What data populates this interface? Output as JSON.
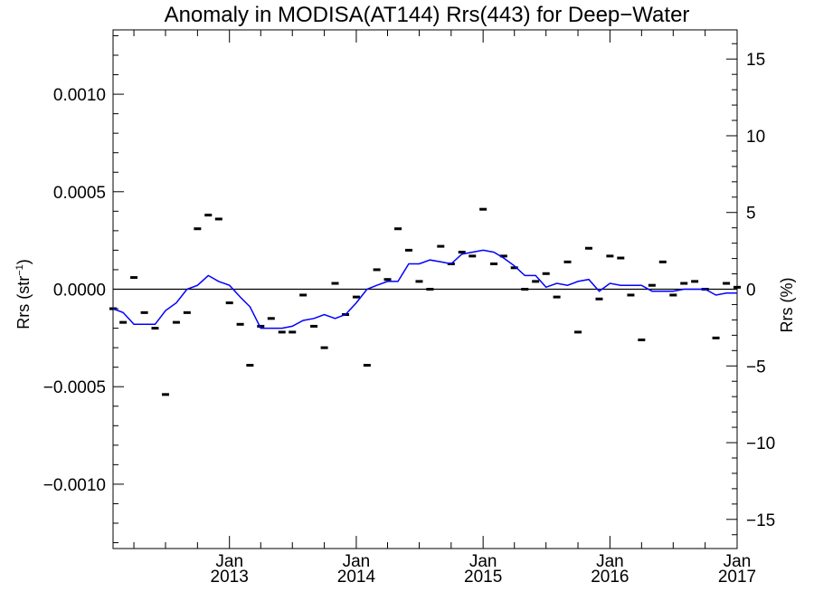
{
  "chart_data": {
    "type": "line",
    "title": "Anomaly in MODISA(AT144) Rrs(443) for Deep−Water",
    "ylabel_left": {
      "main": "Rrs (str",
      "sup": "−1",
      "close": ")"
    },
    "ylabel_right": "Rrs (%)",
    "x_range": [
      "2012-02-01",
      "2017-01-01"
    ],
    "ylim_left": [
      -0.00133,
      0.00133
    ],
    "ylim_right": [
      -16.9,
      16.9
    ],
    "x_ticks": [
      {
        "date": "2013-01-01",
        "label_top": "Jan",
        "label_bottom": "2013"
      },
      {
        "date": "2014-01-01",
        "label_top": "Jan",
        "label_bottom": "2014"
      },
      {
        "date": "2015-01-01",
        "label_top": "Jan",
        "label_bottom": "2015"
      },
      {
        "date": "2016-01-01",
        "label_top": "Jan",
        "label_bottom": "2016"
      },
      {
        "date": "2017-01-01",
        "label_top": "Jan",
        "label_bottom": "2017"
      }
    ],
    "y_ticks_left": [
      {
        "value": 0.001,
        "label": "0.0010"
      },
      {
        "value": 0.0005,
        "label": "0.0005"
      },
      {
        "value": 0.0,
        "label": "0.0000"
      },
      {
        "value": -0.0005,
        "label": "−0.0005"
      },
      {
        "value": -0.001,
        "label": "−0.0010"
      }
    ],
    "y_ticks_right": [
      {
        "value": 15,
        "label": "15"
      },
      {
        "value": 10,
        "label": "10"
      },
      {
        "value": 5,
        "label": "5"
      },
      {
        "value": 0,
        "label": "0"
      },
      {
        "value": -5,
        "label": "−5"
      },
      {
        "value": -10,
        "label": "−10"
      },
      {
        "value": -15,
        "label": "−15"
      }
    ],
    "colors": {
      "series": "#0000ff",
      "points": "#000000",
      "zero_line": "#000000"
    },
    "series": [
      {
        "style": "markers",
        "x": [
          "2012-02-01",
          "2012-03-01",
          "2012-04-01",
          "2012-05-01",
          "2012-06-01",
          "2012-07-01",
          "2012-08-01",
          "2012-09-01",
          "2012-10-01",
          "2012-11-01",
          "2012-12-01",
          "2013-01-01",
          "2013-02-01",
          "2013-03-01",
          "2013-04-01",
          "2013-05-01",
          "2013-06-01",
          "2013-07-01",
          "2013-08-01",
          "2013-09-01",
          "2013-10-01",
          "2013-11-01",
          "2013-12-01",
          "2014-01-01",
          "2014-02-01",
          "2014-03-01",
          "2014-04-01",
          "2014-05-01",
          "2014-06-01",
          "2014-07-01",
          "2014-08-01",
          "2014-09-01",
          "2014-10-01",
          "2014-11-01",
          "2014-12-01",
          "2015-01-01",
          "2015-02-01",
          "2015-03-01",
          "2015-04-01",
          "2015-05-01",
          "2015-06-01",
          "2015-07-01",
          "2015-08-01",
          "2015-09-01",
          "2015-10-01",
          "2015-11-01",
          "2015-12-01",
          "2016-01-01",
          "2016-02-01",
          "2016-03-01",
          "2016-04-01",
          "2016-05-01",
          "2016-06-01",
          "2016-07-01",
          "2016-08-01",
          "2016-09-01",
          "2016-10-01",
          "2016-11-01",
          "2016-12-01",
          "2017-01-01"
        ],
        "y": [
          -0.0001,
          -0.00017,
          6e-05,
          -0.00012,
          -0.0002,
          -0.00054,
          -0.00017,
          -0.00012,
          0.00031,
          0.00038,
          0.00036,
          -7e-05,
          -0.00018,
          -0.00039,
          -0.00019,
          -0.00015,
          -0.00022,
          -0.00022,
          -3e-05,
          -0.00019,
          -0.0003,
          3e-05,
          -0.00013,
          -4e-05,
          -0.00039,
          0.0001,
          5e-05,
          0.00031,
          0.0002,
          4e-05,
          0.0,
          0.00022,
          0.00013,
          0.00019,
          0.00017,
          0.00041,
          0.00013,
          0.00017,
          0.00011,
          0.0,
          4e-05,
          8e-05,
          -4e-05,
          0.00014,
          -0.00022,
          0.00021,
          -5e-05,
          0.00017,
          0.00016,
          -3e-05,
          -0.00026,
          2e-05,
          0.00014,
          -3e-05,
          3e-05,
          4e-05,
          0.0,
          -0.00025,
          3e-05,
          1e-05
        ]
      },
      {
        "style": "line",
        "x": [
          "2012-02-01",
          "2012-03-01",
          "2012-04-01",
          "2012-05-01",
          "2012-06-01",
          "2012-07-01",
          "2012-08-01",
          "2012-09-01",
          "2012-10-01",
          "2012-11-01",
          "2012-12-01",
          "2013-01-01",
          "2013-02-01",
          "2013-03-01",
          "2013-04-01",
          "2013-05-01",
          "2013-06-01",
          "2013-07-01",
          "2013-08-01",
          "2013-09-01",
          "2013-10-01",
          "2013-11-01",
          "2013-12-01",
          "2014-01-01",
          "2014-02-01",
          "2014-03-01",
          "2014-04-01",
          "2014-05-01",
          "2014-06-01",
          "2014-07-01",
          "2014-08-01",
          "2014-09-01",
          "2014-10-01",
          "2014-11-01",
          "2014-12-01",
          "2015-01-01",
          "2015-02-01",
          "2015-03-01",
          "2015-04-01",
          "2015-05-01",
          "2015-06-01",
          "2015-07-01",
          "2015-08-01",
          "2015-09-01",
          "2015-10-01",
          "2015-11-01",
          "2015-12-01",
          "2016-01-01",
          "2016-02-01",
          "2016-03-01",
          "2016-04-01",
          "2016-05-01",
          "2016-06-01",
          "2016-07-01",
          "2016-08-01",
          "2016-09-01",
          "2016-10-01",
          "2016-11-01",
          "2016-12-01",
          "2017-01-01"
        ],
        "y": [
          -0.0001,
          -0.00012,
          -0.00018,
          -0.00018,
          -0.00018,
          -0.00011,
          -7e-05,
          0.0,
          2e-05,
          7e-05,
          4e-05,
          2e-05,
          -4e-05,
          -9e-05,
          -0.0002,
          -0.0002,
          -0.0002,
          -0.00019,
          -0.00016,
          -0.00015,
          -0.00013,
          -0.00015,
          -0.00013,
          -7e-05,
          0.0,
          2e-05,
          4e-05,
          4e-05,
          0.00013,
          0.00013,
          0.00015,
          0.00014,
          0.00013,
          0.00018,
          0.00019,
          0.0002,
          0.00019,
          0.00016,
          0.00012,
          7e-05,
          7e-05,
          1e-05,
          3e-05,
          2e-05,
          4e-05,
          5e-05,
          -1e-05,
          3e-05,
          2e-05,
          2e-05,
          2e-05,
          -1e-05,
          -1e-05,
          -1e-05,
          -0.0,
          -0.0,
          -0.0,
          -3e-05,
          -2e-05,
          -2e-05
        ]
      }
    ]
  }
}
